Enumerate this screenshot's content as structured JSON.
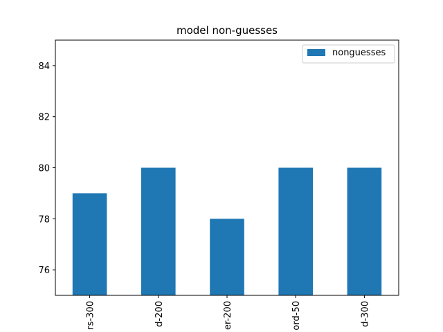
{
  "chart_data": {
    "type": "bar",
    "title": "model non-guesses",
    "categories": [
      "rs-300",
      "d-200",
      "er-200",
      "ord-50",
      "d-300"
    ],
    "series": [
      {
        "name": "nonguesses",
        "values": [
          79,
          80,
          78,
          80,
          80
        ]
      }
    ],
    "xlabel": "",
    "ylabel": "",
    "ylim": [
      75,
      85
    ],
    "yticks": [
      76,
      78,
      80,
      82,
      84
    ],
    "bar_color": "#1f77b4",
    "grid": false,
    "legend_position": "top-right"
  }
}
